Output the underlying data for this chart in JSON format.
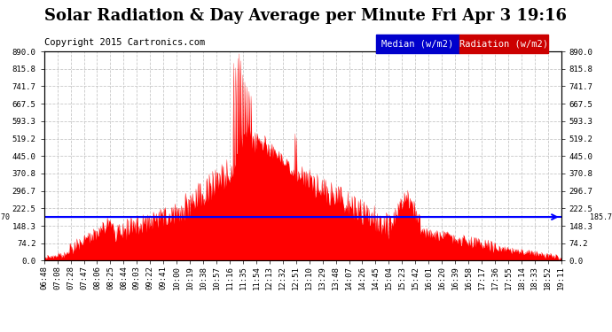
{
  "title": "Solar Radiation & Day Average per Minute Fri Apr 3 19:16",
  "copyright": "Copyright 2015 Cartronics.com",
  "legend_median": "Median (w/m2)",
  "legend_radiation": "Radiation (w/m2)",
  "median_value": 185.7,
  "y_max": 890.0,
  "y_min": 0.0,
  "y_ticks": [
    0.0,
    74.2,
    148.3,
    222.5,
    296.7,
    370.8,
    445.0,
    519.2,
    593.3,
    667.5,
    741.7,
    815.8,
    890.0
  ],
  "y_tick_labels": [
    "0.0",
    "74.2",
    "148.3",
    "222.5",
    "296.7",
    "370.8",
    "445.0",
    "519.2",
    "593.3",
    "667.5",
    "741.7",
    "815.8",
    "890.0"
  ],
  "x_labels": [
    "06:48",
    "07:08",
    "07:28",
    "07:47",
    "08:06",
    "08:25",
    "08:44",
    "09:03",
    "09:22",
    "09:41",
    "10:00",
    "10:19",
    "10:38",
    "10:57",
    "11:16",
    "11:35",
    "11:54",
    "12:13",
    "12:32",
    "12:51",
    "13:10",
    "13:29",
    "13:48",
    "14:07",
    "14:26",
    "14:45",
    "15:04",
    "15:23",
    "15:42",
    "16:01",
    "16:20",
    "16:39",
    "16:58",
    "17:17",
    "17:36",
    "17:55",
    "18:14",
    "18:33",
    "18:52",
    "19:11"
  ],
  "background_color": "#ffffff",
  "plot_bg_color": "#ffffff",
  "grid_color": "#c8c8c8",
  "bar_color": "#ff0000",
  "median_line_color": "#0000ff",
  "title_color": "#000000",
  "title_fontsize": 13,
  "copyright_fontsize": 7.5,
  "axis_fontsize": 6.5,
  "legend_fontsize": 7.5
}
